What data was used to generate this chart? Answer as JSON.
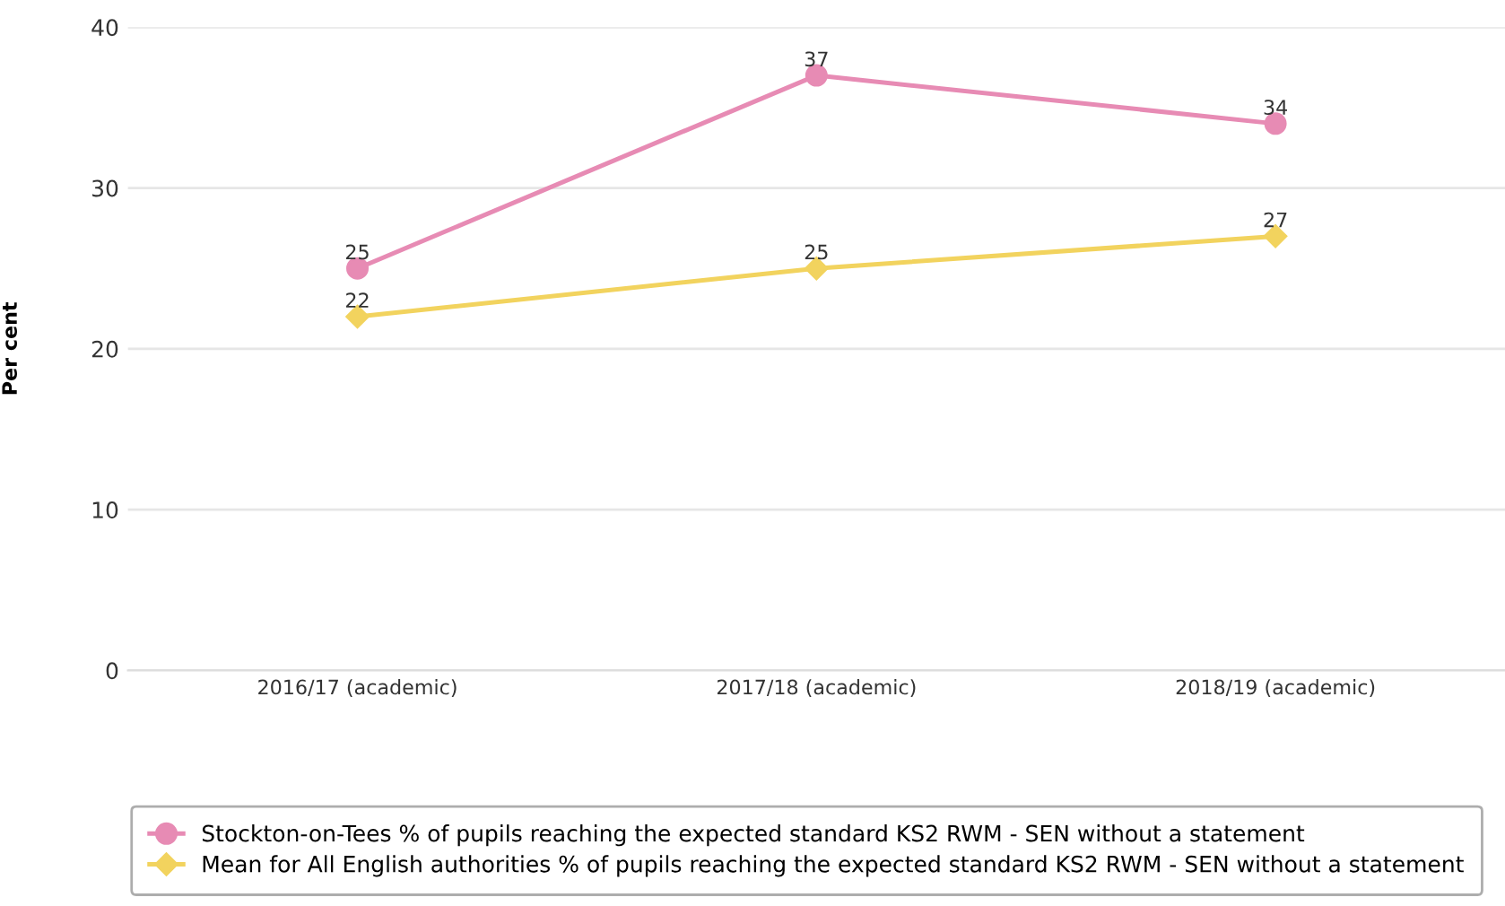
{
  "chart_data": {
    "type": "line",
    "ylabel": "Per cent",
    "categories": [
      "2016/17 (academic)",
      "2017/18 (academic)",
      "2018/19 (academic)"
    ],
    "series": [
      {
        "name": "Stockton-on-Tees % of pupils reaching the expected standard KS2 RWM - SEN without a statement",
        "color": "#e78bb4",
        "marker": "circle",
        "values": [
          25,
          37,
          34
        ]
      },
      {
        "name": "Mean for All English authorities % of pupils reaching the expected standard KS2 RWM - SEN without a statement",
        "color": "#f2d35e",
        "marker": "diamond",
        "values": [
          22,
          25,
          27
        ]
      }
    ],
    "ylim": [
      0,
      40
    ],
    "yticks": [
      0,
      10,
      20,
      30,
      40
    ],
    "grid": "y",
    "legend": "bottom",
    "data_labels": true
  }
}
